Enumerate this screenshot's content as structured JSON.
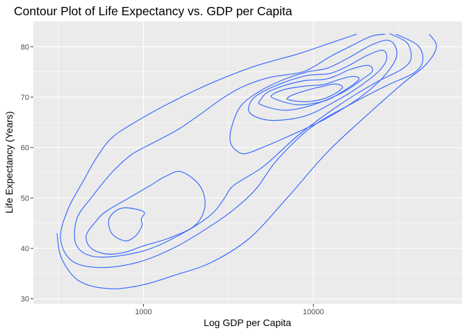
{
  "chart_data": {
    "type": "contour",
    "title": "Contour Plot of Life Expectancy vs. GDP per Capita",
    "xlabel": "Log GDP per Capita",
    "ylabel": "Life Expectancy (Years)",
    "x_scale": "log10",
    "xlim": [
      225,
      75000
    ],
    "ylim": [
      29,
      85
    ],
    "x_ticks": [
      1000,
      10000
    ],
    "x_tick_labels": [
      "1000",
      "10000"
    ],
    "y_ticks": [
      30,
      40,
      50,
      60,
      70,
      80
    ],
    "y_tick_labels": [
      "30",
      "40",
      "50",
      "60",
      "70",
      "80"
    ],
    "grid": true,
    "line_color": "#3366FF",
    "background_color": "#EBEBEB",
    "contours": [
      {
        "points": [
          [
            310,
            43
          ],
          [
            330,
            38
          ],
          [
            420,
            33.5
          ],
          [
            640,
            32
          ],
          [
            1000,
            32.8
          ],
          [
            1500,
            34.6
          ],
          [
            2500,
            37.2
          ],
          [
            4200,
            42
          ],
          [
            7000,
            50
          ],
          [
            12000,
            59
          ],
          [
            20000,
            66
          ],
          [
            33000,
            72.5
          ],
          [
            46000,
            76.5
          ],
          [
            53000,
            80
          ],
          [
            48000,
            82.5
          ]
        ]
      },
      {
        "points": [
          [
            30600,
            82.5
          ],
          [
            41000,
            80.3
          ],
          [
            44000,
            77.3
          ],
          [
            39000,
            74.8
          ],
          [
            27000,
            72.3
          ],
          [
            17000,
            68.8
          ],
          [
            9700,
            64
          ],
          [
            6100,
            57.5
          ],
          [
            4600,
            51.8
          ],
          [
            3400,
            47.7
          ],
          [
            2500,
            44.5
          ],
          [
            1550,
            40.3
          ],
          [
            940,
            37.3
          ],
          [
            560,
            36.2
          ],
          [
            380,
            37.5
          ],
          [
            325,
            42
          ],
          [
            360,
            47.8
          ],
          [
            445,
            53.5
          ],
          [
            530,
            58
          ],
          [
            655,
            62
          ],
          [
            920,
            65.3
          ],
          [
            1420,
            68.8
          ],
          [
            2400,
            72.5
          ],
          [
            4400,
            76
          ],
          [
            8000,
            78.5
          ],
          [
            12000,
            80.5
          ],
          [
            18000,
            82.5
          ]
        ]
      },
      {
        "points": [
          [
            28000,
            82.6
          ],
          [
            35500,
            80.8
          ],
          [
            37500,
            77.7
          ],
          [
            33000,
            75.5
          ],
          [
            23000,
            72.8
          ],
          [
            14000,
            68.3
          ],
          [
            8200,
            62.5
          ],
          [
            5100,
            56.3
          ],
          [
            3400,
            52.5
          ],
          [
            3000,
            50
          ],
          [
            2500,
            46.7
          ],
          [
            1700,
            43
          ],
          [
            1000,
            39.5
          ],
          [
            540,
            38.3
          ],
          [
            405,
            40.5
          ],
          [
            405,
            45.8
          ],
          [
            500,
            50.3
          ],
          [
            650,
            55
          ],
          [
            850,
            58.6
          ],
          [
            1150,
            61
          ],
          [
            1600,
            63.6
          ],
          [
            2200,
            66.8
          ],
          [
            2900,
            69.7
          ],
          [
            3800,
            72
          ],
          [
            5500,
            73.9
          ],
          [
            8200,
            74.8
          ],
          [
            10000,
            76
          ],
          [
            12500,
            78
          ],
          [
            17000,
            80.3
          ],
          [
            22000,
            82.1
          ],
          [
            26500,
            82.5
          ]
        ]
      },
      {
        "points": [
          [
            3250,
            61
          ],
          [
            3550,
            59.3
          ],
          [
            4000,
            58.8
          ],
          [
            5000,
            60
          ],
          [
            7200,
            62.3
          ],
          [
            11500,
            65.5
          ],
          [
            18000,
            69.5
          ],
          [
            25000,
            73.5
          ],
          [
            30500,
            77.5
          ],
          [
            30300,
            80.1
          ],
          [
            27000,
            81.3
          ],
          [
            21500,
            80.2
          ],
          [
            16500,
            78
          ],
          [
            12200,
            75.8
          ],
          [
            9200,
            75
          ],
          [
            6700,
            73.5
          ],
          [
            4900,
            71.3
          ],
          [
            3750,
            68.3
          ],
          [
            3300,
            64
          ]
        ]
      },
      {
        "points": [
          [
            4250,
            66.8
          ],
          [
            5600,
            65.4
          ],
          [
            9000,
            66.3
          ],
          [
            14000,
            69.5
          ],
          [
            19000,
            72.3
          ],
          [
            24500,
            75.3
          ],
          [
            27000,
            77.7
          ],
          [
            25500,
            79.3
          ],
          [
            20500,
            78.2
          ],
          [
            16000,
            76.2
          ],
          [
            12500,
            74.7
          ],
          [
            9200,
            74.3
          ],
          [
            6700,
            72.9
          ],
          [
            5000,
            71
          ],
          [
            4300,
            69.2
          ]
        ]
      },
      {
        "points": [
          [
            4900,
            68.5
          ],
          [
            6800,
            67.4
          ],
          [
            10000,
            68.5
          ],
          [
            15000,
            71
          ],
          [
            19300,
            73.5
          ],
          [
            22200,
            75.1
          ],
          [
            21000,
            76.3
          ],
          [
            16500,
            75.5
          ],
          [
            13500,
            74.2
          ],
          [
            11500,
            73.5
          ],
          [
            9000,
            73.3
          ],
          [
            6900,
            72.4
          ],
          [
            5400,
            71
          ],
          [
            4900,
            69.5
          ]
        ]
      },
      {
        "points": [
          [
            5800,
            69.8
          ],
          [
            8000,
            68.5
          ],
          [
            11500,
            69.2
          ],
          [
            15000,
            71.2
          ],
          [
            18500,
            73.5
          ],
          [
            17000,
            74.1
          ],
          [
            14200,
            73.5
          ],
          [
            11500,
            72.5
          ],
          [
            9000,
            72.2
          ],
          [
            6900,
            71.6
          ],
          [
            5800,
            70.6
          ]
        ]
      },
      {
        "points": [
          [
            7100,
            69.5
          ],
          [
            9200,
            69.1
          ],
          [
            12000,
            69.9
          ],
          [
            14800,
            71.8
          ],
          [
            13500,
            72.6
          ],
          [
            11200,
            72.1
          ],
          [
            9000,
            71.3
          ],
          [
            7400,
            70.3
          ]
        ]
      },
      {
        "points": [
          [
            970,
            45.8
          ],
          [
            1000,
            47.3
          ],
          [
            750,
            48
          ],
          [
            630,
            46
          ],
          [
            650,
            43
          ],
          [
            780,
            41.5
          ],
          [
            900,
            42.5
          ],
          [
            980,
            44.5
          ]
        ]
      },
      {
        "points": [
          [
            1670,
            55.2
          ],
          [
            2150,
            52.4
          ],
          [
            2300,
            48.3
          ],
          [
            2000,
            44.5
          ],
          [
            1400,
            42
          ],
          [
            1000,
            40.5
          ],
          [
            770,
            39.2
          ],
          [
            600,
            38.9
          ],
          [
            490,
            40.1
          ],
          [
            460,
            42.5
          ],
          [
            520,
            45.2
          ],
          [
            600,
            47.3
          ],
          [
            820,
            50
          ],
          [
            1100,
            52.5
          ],
          [
            1350,
            54.3
          ]
        ]
      }
    ]
  }
}
